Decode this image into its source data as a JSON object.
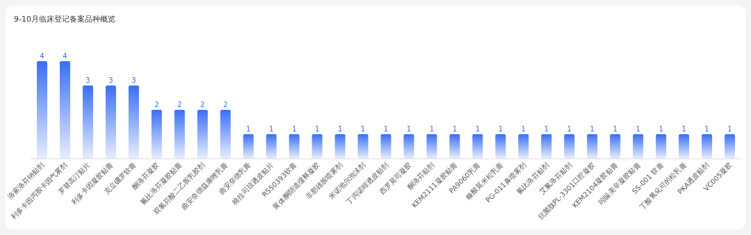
{
  "chart_data": {
    "type": "bar",
    "title": "9-10月临床登记备案品种概览",
    "categories": [
      "洛索洛芬钠贴剂",
      "利多卡因丙胺卡因气雾剂",
      "罗替高汀贴片",
      "利多卡因凝胶贴膏",
      "克立硼罗软膏",
      "酮洛芬凝胶",
      "氟比洛芬凝胶贴膏",
      "双氯芬酸二乙胺乳胶剂",
      "曲安奈德益康唑乳膏",
      "曲安奈德乳膏",
      "格拉司琼透皮贴片",
      "RS50393软膏",
      "黄体酮阴道缓释凝胶",
      "非那雄胺喷雾剂",
      "米诺地尔泡沫剂",
      "丁丙诺啡透皮贴剂",
      "西罗莫司凝胶",
      "酮洛芬贴剂",
      "KEM2111凝胶贴膏",
      "PA9060乳膏",
      "糠酸莫米松乳膏",
      "PG-011鼻喷雾剂",
      "氟比洛芬贴剂",
      "艾氟洛芬贴剂",
      "抗菌肽PL-3301口腔凝胶",
      "KEM2104凝胶贴膏",
      "吲哚美辛凝胶贴膏",
      "SS-001 软膏",
      "丁酸氢化可的松乳膏",
      "PKA透皮贴剂",
      "VC005凝胶"
    ],
    "values": [
      4,
      4,
      3,
      3,
      3,
      2,
      2,
      2,
      2,
      1,
      1,
      1,
      1,
      1,
      1,
      1,
      1,
      1,
      1,
      1,
      1,
      1,
      1,
      1,
      1,
      1,
      1,
      1,
      1,
      1,
      1
    ],
    "color": "#3a6ef5",
    "data_labels": true
  }
}
